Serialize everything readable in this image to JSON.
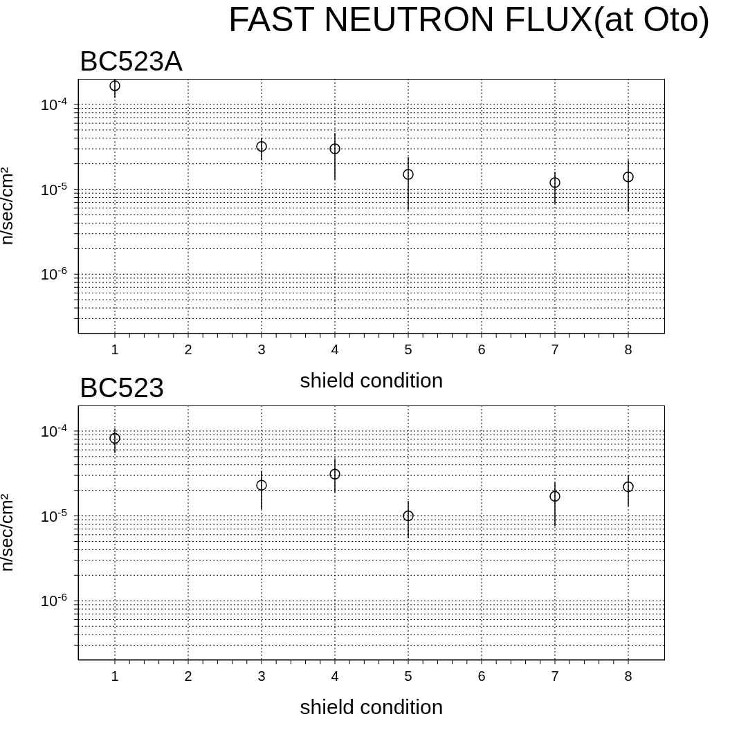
{
  "chart_data": [
    {
      "type": "scatter",
      "title": "FAST NEUTRON FLUX(at Oto)",
      "subtitle": "BC523A",
      "xlabel": "shield condition",
      "ylabel": "n/sec/cm²",
      "log": "y",
      "grid": true,
      "marker": "circle",
      "xlim": [
        0.5,
        8.5
      ],
      "xticks": [
        1,
        {
          "value": 1.2,
          "label": null
        },
        {
          "value": 1.4,
          "label": null
        },
        {
          "value": 1.6,
          "label": null
        },
        {
          "value": 1.8,
          "label": null
        },
        2,
        {
          "value": 2.2,
          "label": null
        },
        {
          "value": 2.4,
          "label": null
        },
        {
          "value": 2.6,
          "label": null
        },
        {
          "value": 2.8,
          "label": null
        },
        3,
        {
          "value": 3.2,
          "label": null
        },
        {
          "value": 3.4,
          "label": null
        },
        {
          "value": 3.6,
          "label": null
        },
        {
          "value": 3.8,
          "label": null
        },
        4,
        {
          "value": 4.2,
          "label": null
        },
        {
          "value": 4.4,
          "label": null
        },
        {
          "value": 4.6,
          "label": null
        },
        {
          "value": 4.8,
          "label": null
        },
        5,
        {
          "value": 5.2,
          "label": null
        },
        {
          "value": 5.4,
          "label": null
        },
        {
          "value": 5.6,
          "label": null
        },
        {
          "value": 5.8,
          "label": null
        },
        6,
        {
          "value": 6.2,
          "label": null
        },
        {
          "value": 6.4,
          "label": null
        },
        {
          "value": 6.6,
          "label": null
        },
        {
          "value": 6.8,
          "label": null
        },
        7,
        {
          "value": 7.2,
          "label": null
        },
        {
          "value": 7.4,
          "label": null
        },
        {
          "value": 7.6,
          "label": null
        },
        {
          "value": 7.8,
          "label": null
        },
        8
      ],
      "ylim": [
        2e-07,
        0.0002
      ],
      "yticks": [
        {
          "value": 3e-07,
          "label": null
        },
        {
          "value": 4e-07,
          "label": null
        },
        {
          "value": 5e-07,
          "label": null
        },
        {
          "value": 6e-07,
          "label": null
        },
        {
          "value": 7e-07,
          "label": null
        },
        {
          "value": 8e-07,
          "label": null
        },
        {
          "value": 9e-07,
          "label": null
        },
        {
          "value": 1e-06,
          "label": "10$^{-6}$"
        },
        {
          "value": 2e-06,
          "label": null
        },
        {
          "value": 3e-06,
          "label": null
        },
        {
          "value": 4e-06,
          "label": null
        },
        {
          "value": 5e-06,
          "label": null
        },
        {
          "value": 6e-06,
          "label": null
        },
        {
          "value": 7e-06,
          "label": null
        },
        {
          "value": 8e-06,
          "label": null
        },
        {
          "value": 9e-06,
          "label": null
        },
        {
          "value": 1e-05,
          "label": "10$^{-5}$"
        },
        {
          "value": 2e-05,
          "label": null
        },
        {
          "value": 3e-05,
          "label": null
        },
        {
          "value": 4e-05,
          "label": null
        },
        {
          "value": 5e-05,
          "label": null
        },
        {
          "value": 6e-05,
          "label": null
        },
        {
          "value": 7e-05,
          "label": null
        },
        {
          "value": 8e-05,
          "label": null
        },
        {
          "value": 9e-05,
          "label": null
        },
        {
          "value": 0.0001,
          "label": "10$^{-4}$"
        }
      ],
      "x": [
        1,
        3,
        4,
        5,
        7,
        8
      ],
      "series": [
        {
          "color": "#000000",
          "values": [
            0.000166,
            3.2e-05,
            3e-05,
            1.5e-05,
            1.2e-05,
            1.4e-05
          ],
          "errors": [
            [
              0.00012,
              0.0002
            ],
            [
              2.2e-05,
              4e-05
            ],
            [
              1.3e-05,
              4.6e-05
            ],
            [
              5.7e-06,
              2.4e-05
            ],
            [
              6.8e-06,
              1.6e-05
            ],
            [
              5.5e-06,
              2.2e-05
            ]
          ]
        }
      ]
    },
    {
      "type": "scatter",
      "title": "BC523",
      "xlabel": "shield condition",
      "ylabel": "n/sec/cm²",
      "log": "y",
      "grid": true,
      "marker": "circle",
      "xlim": [
        0.5,
        8.5
      ],
      "xticks": [
        1,
        {
          "value": 1.2,
          "label": null
        },
        {
          "value": 1.4,
          "label": null
        },
        {
          "value": 1.6,
          "label": null
        },
        {
          "value": 1.8,
          "label": null
        },
        2,
        {
          "value": 2.2,
          "label": null
        },
        {
          "value": 2.4,
          "label": null
        },
        {
          "value": 2.6,
          "label": null
        },
        {
          "value": 2.8,
          "label": null
        },
        3,
        {
          "value": 3.2,
          "label": null
        },
        {
          "value": 3.4,
          "label": null
        },
        {
          "value": 3.6,
          "label": null
        },
        {
          "value": 3.8,
          "label": null
        },
        4,
        {
          "value": 4.2,
          "label": null
        },
        {
          "value": 4.4,
          "label": null
        },
        {
          "value": 4.6,
          "label": null
        },
        {
          "value": 4.8,
          "label": null
        },
        5,
        {
          "value": 5.2,
          "label": null
        },
        {
          "value": 5.4,
          "label": null
        },
        {
          "value": 5.6,
          "label": null
        },
        {
          "value": 5.8,
          "label": null
        },
        6,
        {
          "value": 6.2,
          "label": null
        },
        {
          "value": 6.4,
          "label": null
        },
        {
          "value": 6.6,
          "label": null
        },
        {
          "value": 6.8,
          "label": null
        },
        7,
        {
          "value": 7.2,
          "label": null
        },
        {
          "value": 7.4,
          "label": null
        },
        {
          "value": 7.6,
          "label": null
        },
        {
          "value": 7.8,
          "label": null
        },
        8
      ],
      "ylim": [
        2e-07,
        0.0002
      ],
      "yticks": [
        {
          "value": 3e-07,
          "label": null
        },
        {
          "value": 4e-07,
          "label": null
        },
        {
          "value": 5e-07,
          "label": null
        },
        {
          "value": 6e-07,
          "label": null
        },
        {
          "value": 7e-07,
          "label": null
        },
        {
          "value": 8e-07,
          "label": null
        },
        {
          "value": 9e-07,
          "label": null
        },
        {
          "value": 1e-06,
          "label": "10$^{-6}$"
        },
        {
          "value": 2e-06,
          "label": null
        },
        {
          "value": 3e-06,
          "label": null
        },
        {
          "value": 4e-06,
          "label": null
        },
        {
          "value": 5e-06,
          "label": null
        },
        {
          "value": 6e-06,
          "label": null
        },
        {
          "value": 7e-06,
          "label": null
        },
        {
          "value": 8e-06,
          "label": null
        },
        {
          "value": 9e-06,
          "label": null
        },
        {
          "value": 1e-05,
          "label": "10$^{-5}$"
        },
        {
          "value": 2e-05,
          "label": null
        },
        {
          "value": 3e-05,
          "label": null
        },
        {
          "value": 4e-05,
          "label": null
        },
        {
          "value": 5e-05,
          "label": null
        },
        {
          "value": 6e-05,
          "label": null
        },
        {
          "value": 7e-05,
          "label": null
        },
        {
          "value": 8e-05,
          "label": null
        },
        {
          "value": 9e-05,
          "label": null
        },
        {
          "value": 0.0001,
          "label": "10$^{-4}$"
        }
      ],
      "x": [
        1,
        3,
        4,
        5,
        7,
        8
      ],
      "series": [
        {
          "color": "#000000",
          "values": [
            8.2e-05,
            2.3e-05,
            3.1e-05,
            1e-05,
            1.7e-05,
            2.2e-05
          ],
          "errors": [
            [
              5.5e-05,
              0.000107
            ],
            [
              1.2e-05,
              3.4e-05
            ],
            [
              1.9e-05,
              4.7e-05
            ],
            [
              5.5e-06,
              1.5e-05
            ],
            [
              7.6e-06,
              2.5e-05
            ],
            [
              1.3e-05,
              3e-05
            ]
          ]
        }
      ]
    }
  ]
}
